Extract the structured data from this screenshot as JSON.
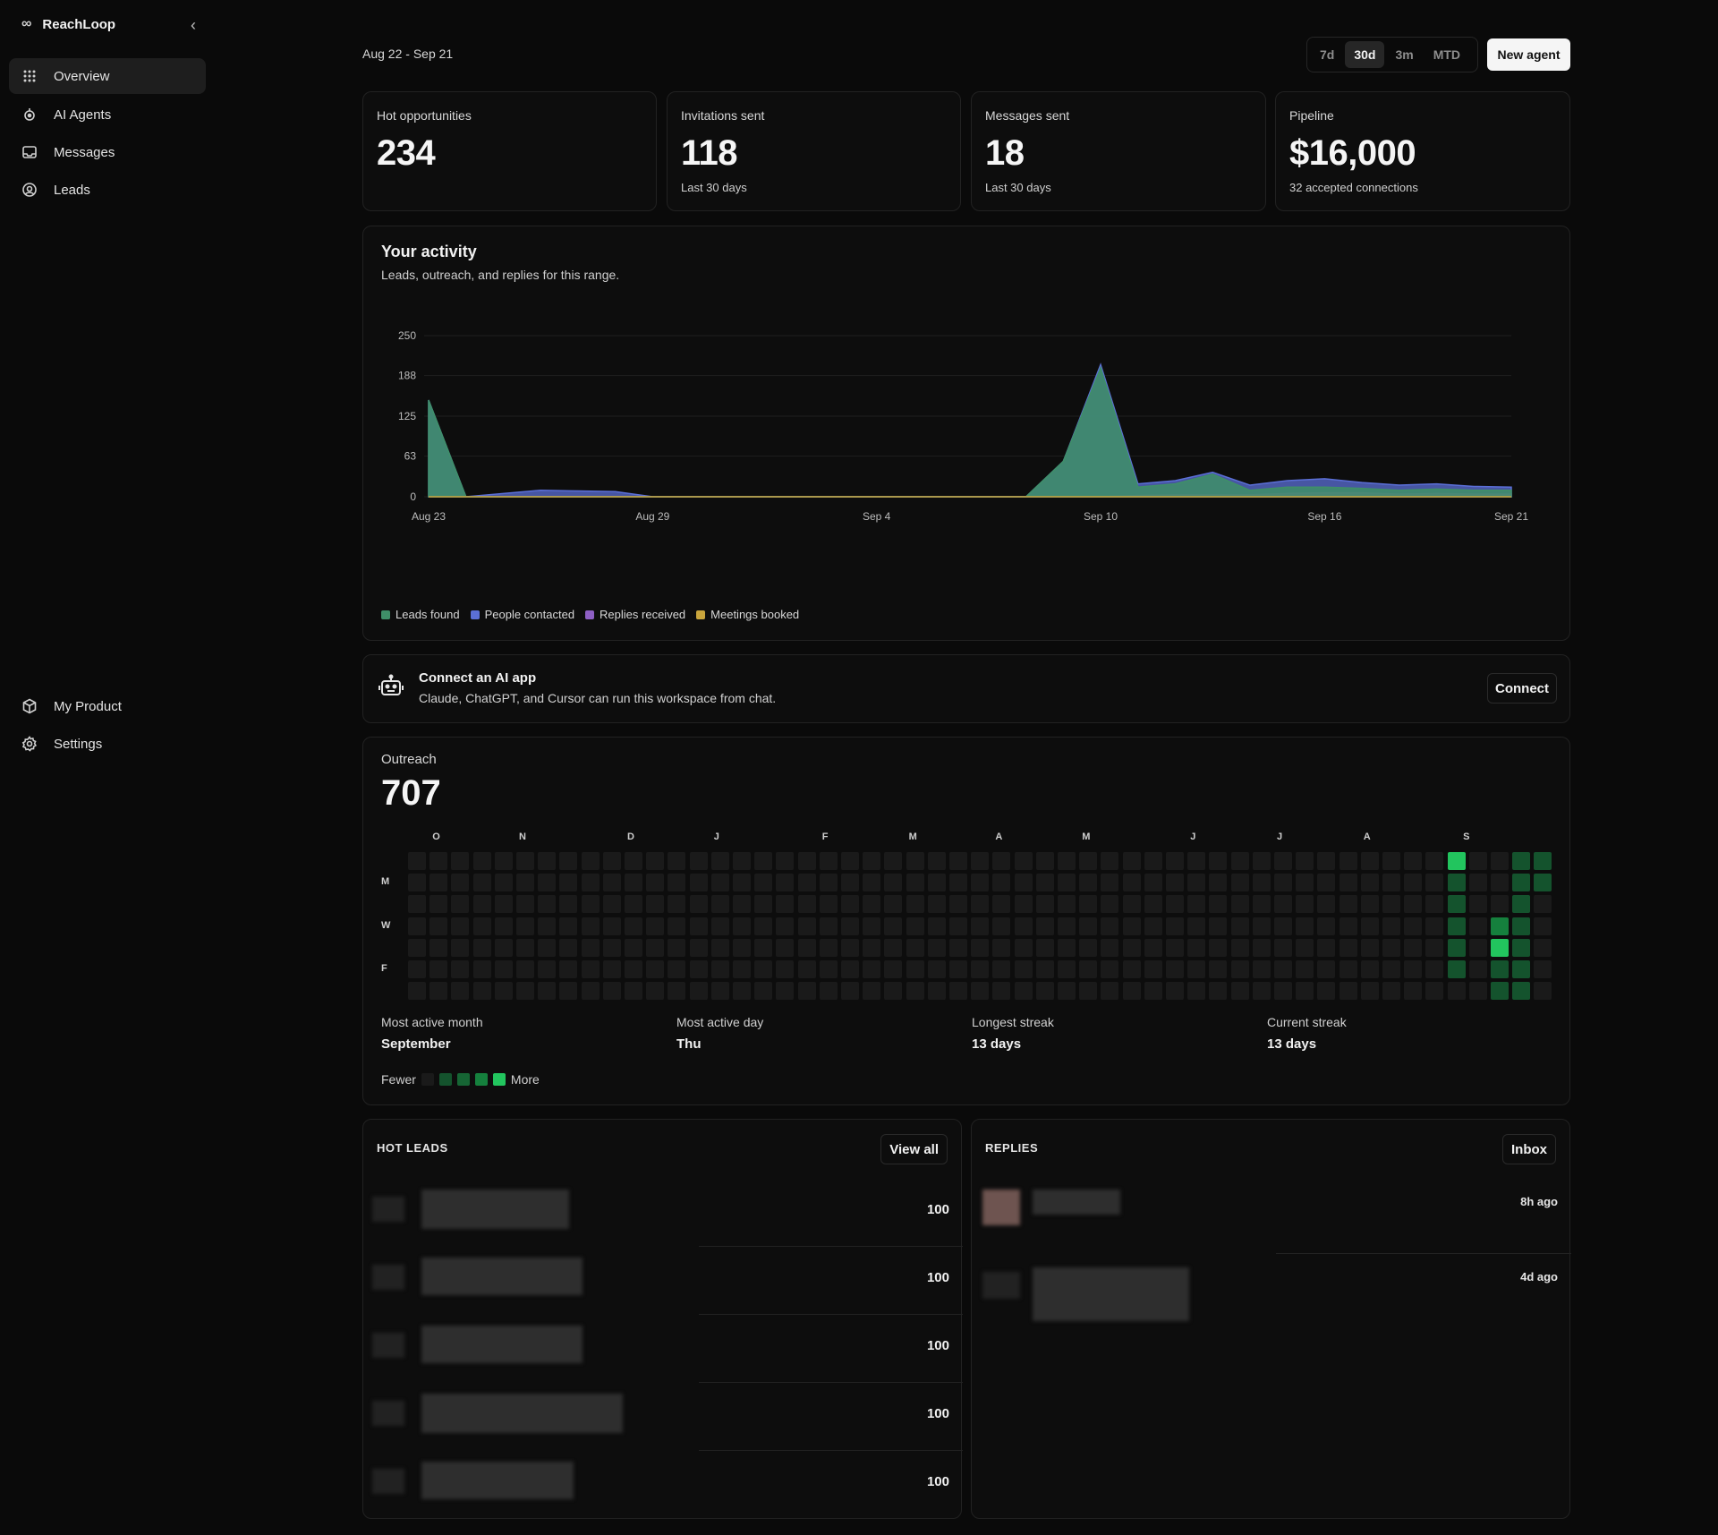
{
  "app": {
    "name": "ReachLoop",
    "logo_icon": "infinity-icon",
    "collapse_icon": "chevron-left-icon"
  },
  "sidebar": {
    "primary": [
      {
        "label": "Overview",
        "icon": "grid-icon",
        "active": true
      },
      {
        "label": "AI Agents",
        "icon": "agent-icon",
        "active": false
      },
      {
        "label": "Messages",
        "icon": "inbox-icon",
        "active": false
      },
      {
        "label": "Leads",
        "icon": "target-icon",
        "active": false
      }
    ],
    "secondary": [
      {
        "label": "My Product",
        "icon": "package-icon"
      },
      {
        "label": "Settings",
        "icon": "gear-icon"
      }
    ]
  },
  "header": {
    "date_range": "Aug 22 - Sep 21",
    "ranges": [
      "7d",
      "30d",
      "3m",
      "MTD"
    ],
    "active_range": "30d",
    "new_agent_label": "New agent"
  },
  "stats": [
    {
      "label": "Hot opportunities",
      "value": "234",
      "sub": ""
    },
    {
      "label": "Invitations sent",
      "value": "118",
      "sub": "Last 30 days"
    },
    {
      "label": "Messages sent",
      "value": "18",
      "sub": "Last 30 days"
    },
    {
      "label": "Pipeline",
      "value": "$16,000",
      "sub": "32 accepted connections"
    }
  ],
  "activity": {
    "title": "Your activity",
    "subtitle": "Leads, outreach, and replies for this range."
  },
  "chart_data": {
    "type": "area",
    "x": [
      "Aug 23",
      "Aug 24",
      "Aug 25",
      "Aug 26",
      "Aug 27",
      "Aug 28",
      "Aug 29",
      "Aug 30",
      "Aug 31",
      "Sep 1",
      "Sep 2",
      "Sep 3",
      "Sep 4",
      "Sep 5",
      "Sep 6",
      "Sep 7",
      "Sep 8",
      "Sep 9",
      "Sep 10",
      "Sep 11",
      "Sep 12",
      "Sep 13",
      "Sep 14",
      "Sep 15",
      "Sep 16",
      "Sep 17",
      "Sep 18",
      "Sep 19",
      "Sep 20",
      "Sep 21"
    ],
    "x_ticks": [
      "Aug 23",
      "Aug 29",
      "Sep 4",
      "Sep 10",
      "Sep 16",
      "Sep 21"
    ],
    "y_ticks": [
      0,
      63,
      125,
      188,
      250
    ],
    "ylim": [
      0,
      250
    ],
    "series": [
      {
        "name": "Leads found",
        "color": "#3f8f68",
        "values": [
          150,
          0,
          0,
          0,
          0,
          0,
          0,
          0,
          0,
          0,
          0,
          0,
          0,
          0,
          0,
          0,
          0,
          55,
          200,
          15,
          20,
          35,
          10,
          15,
          15,
          13,
          10,
          12,
          10,
          10
        ]
      },
      {
        "name": "People contacted",
        "color": "#5b6fd6",
        "values": [
          150,
          0,
          5,
          10,
          9,
          8,
          0,
          0,
          0,
          0,
          0,
          0,
          0,
          0,
          0,
          0,
          0,
          55,
          205,
          20,
          25,
          38,
          18,
          25,
          28,
          22,
          18,
          20,
          16,
          15
        ]
      },
      {
        "name": "Replies received",
        "color": "#8e5fc4",
        "values": [
          0,
          0,
          0,
          0,
          0,
          0,
          0,
          0,
          0,
          0,
          0,
          0,
          0,
          0,
          0,
          0,
          0,
          0,
          0,
          2,
          3,
          3,
          3,
          5,
          6,
          6,
          4,
          5,
          4,
          4
        ]
      },
      {
        "name": "Meetings booked",
        "color": "#c9a53c",
        "values": [
          0,
          0,
          0,
          0,
          0,
          0,
          0,
          0,
          0,
          0,
          0,
          0,
          0,
          0,
          0,
          0,
          0,
          0,
          0,
          0,
          0,
          0,
          0,
          0,
          0,
          0,
          0,
          0,
          0,
          0
        ]
      }
    ]
  },
  "connect": {
    "icon": "robot-icon",
    "title": "Connect an AI app",
    "subtitle": "Claude, ChatGPT, and Cursor can run this workspace from chat.",
    "button": "Connect"
  },
  "outreach": {
    "label": "Outreach",
    "total": "707",
    "months": [
      "O",
      "N",
      "D",
      "J",
      "F",
      "M",
      "A",
      "M",
      "J",
      "J",
      "A",
      "S"
    ],
    "days": [
      "M",
      "W",
      "F"
    ],
    "levels": [
      "#1a1a1a",
      "#14532d",
      "#166534",
      "#15803d",
      "#22c55e"
    ],
    "active_cells": [
      {
        "week": 48,
        "day": 0,
        "level": 4
      },
      {
        "week": 48,
        "day": 1,
        "level": 1
      },
      {
        "week": 48,
        "day": 2,
        "level": 1
      },
      {
        "week": 48,
        "day": 3,
        "level": 1
      },
      {
        "week": 48,
        "day": 4,
        "level": 1
      },
      {
        "week": 48,
        "day": 5,
        "level": 1
      },
      {
        "week": 50,
        "day": 3,
        "level": 3
      },
      {
        "week": 50,
        "day": 4,
        "level": 4
      },
      {
        "week": 50,
        "day": 5,
        "level": 1
      },
      {
        "week": 50,
        "day": 6,
        "level": 1
      },
      {
        "week": 51,
        "day": 0,
        "level": 1
      },
      {
        "week": 51,
        "day": 1,
        "level": 1
      },
      {
        "week": 51,
        "day": 2,
        "level": 1
      },
      {
        "week": 51,
        "day": 3,
        "level": 1
      },
      {
        "week": 51,
        "day": 4,
        "level": 1
      },
      {
        "week": 51,
        "day": 5,
        "level": 1
      },
      {
        "week": 51,
        "day": 6,
        "level": 1
      },
      {
        "week": 52,
        "day": 0,
        "level": 1
      },
      {
        "week": 52,
        "day": 1,
        "level": 1
      }
    ],
    "stats": [
      {
        "label": "Most active month",
        "value": "September"
      },
      {
        "label": "Most active day",
        "value": "Thu"
      },
      {
        "label": "Longest streak",
        "value": "13 days"
      },
      {
        "label": "Current streak",
        "value": "13 days"
      }
    ],
    "legend_fewer": "Fewer",
    "legend_more": "More"
  },
  "hot_leads": {
    "title": "HOT LEADS",
    "button": "View all",
    "rows": [
      {
        "score": "100"
      },
      {
        "score": "100"
      },
      {
        "score": "100"
      },
      {
        "score": "100"
      },
      {
        "score": "100"
      }
    ]
  },
  "replies": {
    "title": "REPLIES",
    "button": "Inbox",
    "rows": [
      {
        "time": "8h ago"
      },
      {
        "time": "4d ago"
      }
    ]
  }
}
